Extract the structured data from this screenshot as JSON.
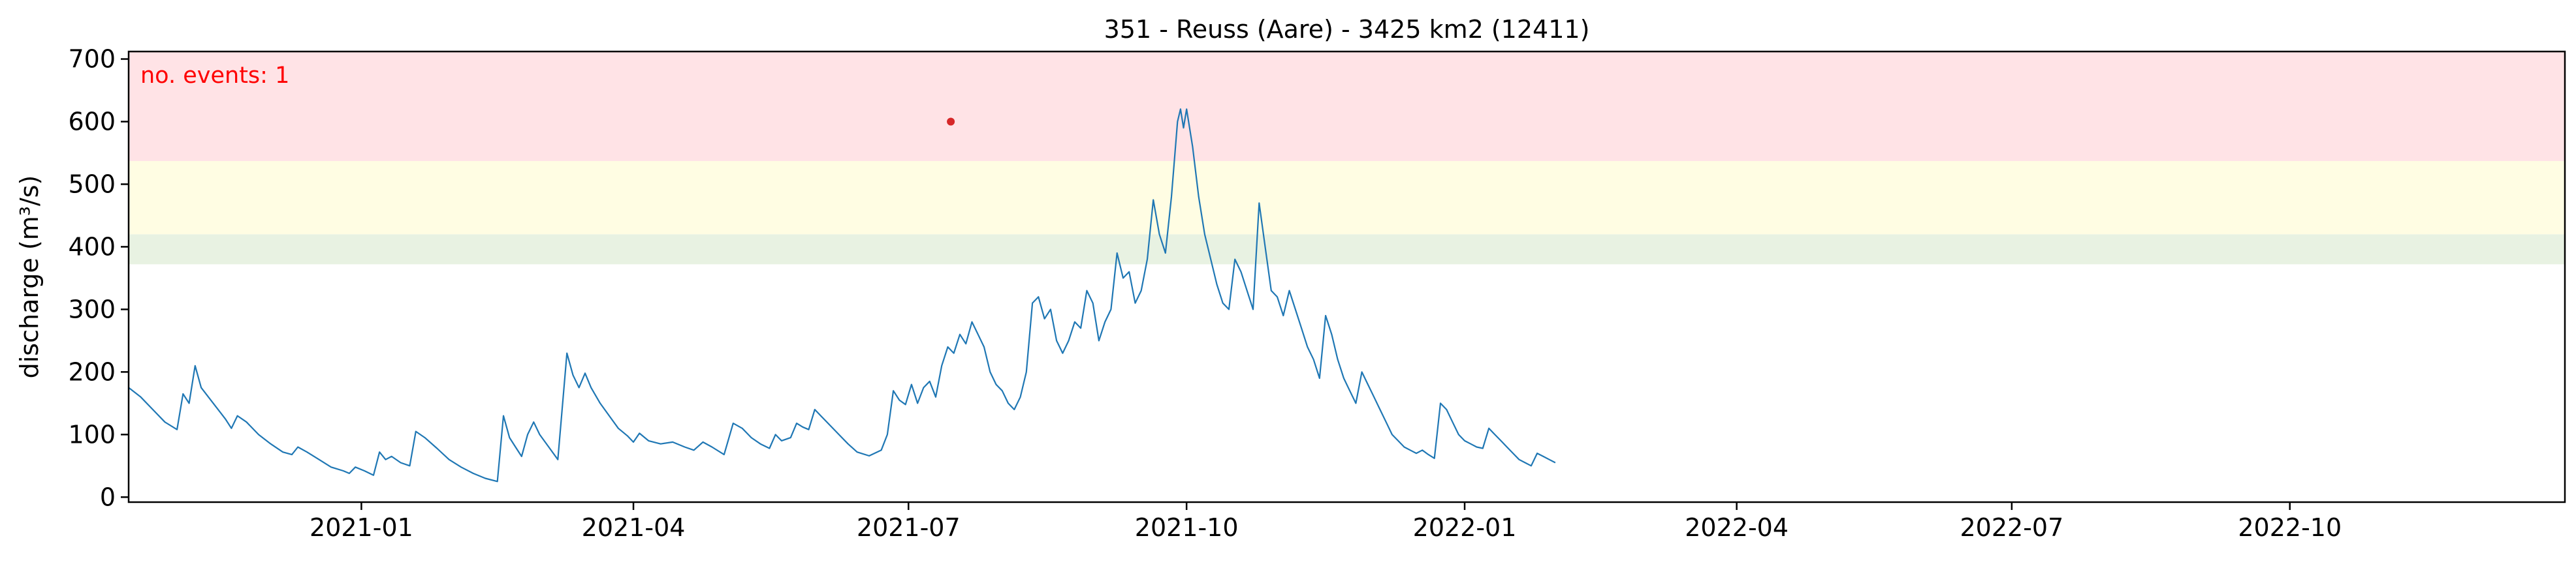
{
  "chart_data": {
    "type": "line",
    "title": "351 - Reuss (Aare) - 3425 km2 (12411)",
    "xlabel": "",
    "ylabel": "discharge (m³/s)",
    "x_range": [
      "2020-10-16",
      "2022-12-31"
    ],
    "ylim": [
      -8,
      712
    ],
    "y_ticks": [
      0,
      100,
      200,
      300,
      400,
      500,
      600,
      700
    ],
    "x_ticks": [
      {
        "date": "2021-01-01",
        "label": "2021-01"
      },
      {
        "date": "2021-04-01",
        "label": "2021-04"
      },
      {
        "date": "2021-07-01",
        "label": "2021-07"
      },
      {
        "date": "2021-10-01",
        "label": "2021-10"
      },
      {
        "date": "2022-01-01",
        "label": "2022-01"
      },
      {
        "date": "2022-04-01",
        "label": "2022-04"
      },
      {
        "date": "2022-07-01",
        "label": "2022-07"
      },
      {
        "date": "2022-10-01",
        "label": "2022-10"
      }
    ],
    "threshold_bands": [
      {
        "name": "green-band",
        "y0": 372,
        "y1": 420,
        "color": "#e8f2e2"
      },
      {
        "name": "yellow-band",
        "y0": 420,
        "y1": 537,
        "color": "#fffde3"
      },
      {
        "name": "red-band",
        "y0": 537,
        "y1": 712,
        "color": "#ffe3e6"
      }
    ],
    "annotation": {
      "text": "no. events: 1",
      "color": "#ff0000"
    },
    "events": [
      {
        "date": "2021-07-15",
        "value": 600,
        "color": "#d62728"
      }
    ],
    "line_color": "#1f77b4",
    "series": [
      {
        "name": "discharge",
        "points": [
          [
            "2020-10-16",
            175
          ],
          [
            "2020-10-20",
            160
          ],
          [
            "2020-10-24",
            140
          ],
          [
            "2020-10-28",
            120
          ],
          [
            "2020-11-01",
            108
          ],
          [
            "2020-11-03",
            165
          ],
          [
            "2020-11-05",
            150
          ],
          [
            "2020-11-07",
            210
          ],
          [
            "2020-11-09",
            175
          ],
          [
            "2020-11-13",
            150
          ],
          [
            "2020-11-17",
            125
          ],
          [
            "2020-11-19",
            110
          ],
          [
            "2020-11-21",
            130
          ],
          [
            "2020-11-24",
            120
          ],
          [
            "2020-11-28",
            100
          ],
          [
            "2020-12-02",
            85
          ],
          [
            "2020-12-06",
            72
          ],
          [
            "2020-12-09",
            68
          ],
          [
            "2020-12-11",
            80
          ],
          [
            "2020-12-14",
            72
          ],
          [
            "2020-12-18",
            60
          ],
          [
            "2020-12-22",
            48
          ],
          [
            "2020-12-26",
            42
          ],
          [
            "2020-12-28",
            38
          ],
          [
            "2020-12-30",
            48
          ],
          [
            "2021-01-02",
            42
          ],
          [
            "2021-01-05",
            35
          ],
          [
            "2021-01-07",
            72
          ],
          [
            "2021-01-09",
            60
          ],
          [
            "2021-01-11",
            65
          ],
          [
            "2021-01-14",
            55
          ],
          [
            "2021-01-17",
            50
          ],
          [
            "2021-01-19",
            105
          ],
          [
            "2021-01-22",
            95
          ],
          [
            "2021-01-26",
            78
          ],
          [
            "2021-01-30",
            60
          ],
          [
            "2021-02-03",
            48
          ],
          [
            "2021-02-07",
            38
          ],
          [
            "2021-02-11",
            30
          ],
          [
            "2021-02-15",
            25
          ],
          [
            "2021-02-17",
            130
          ],
          [
            "2021-02-19",
            95
          ],
          [
            "2021-02-21",
            80
          ],
          [
            "2021-02-23",
            65
          ],
          [
            "2021-02-25",
            100
          ],
          [
            "2021-02-27",
            120
          ],
          [
            "2021-03-01",
            100
          ],
          [
            "2021-03-04",
            80
          ],
          [
            "2021-03-07",
            60
          ],
          [
            "2021-03-10",
            230
          ],
          [
            "2021-03-12",
            195
          ],
          [
            "2021-03-14",
            175
          ],
          [
            "2021-03-16",
            198
          ],
          [
            "2021-03-18",
            175
          ],
          [
            "2021-03-21",
            150
          ],
          [
            "2021-03-24",
            130
          ],
          [
            "2021-03-27",
            110
          ],
          [
            "2021-03-30",
            98
          ],
          [
            "2021-04-01",
            88
          ],
          [
            "2021-04-03",
            102
          ],
          [
            "2021-04-06",
            90
          ],
          [
            "2021-04-10",
            85
          ],
          [
            "2021-04-14",
            88
          ],
          [
            "2021-04-18",
            80
          ],
          [
            "2021-04-21",
            75
          ],
          [
            "2021-04-24",
            88
          ],
          [
            "2021-04-27",
            80
          ],
          [
            "2021-05-01",
            68
          ],
          [
            "2021-05-04",
            118
          ],
          [
            "2021-05-07",
            110
          ],
          [
            "2021-05-10",
            95
          ],
          [
            "2021-05-13",
            85
          ],
          [
            "2021-05-16",
            78
          ],
          [
            "2021-05-18",
            100
          ],
          [
            "2021-05-20",
            90
          ],
          [
            "2021-05-23",
            95
          ],
          [
            "2021-05-25",
            118
          ],
          [
            "2021-05-27",
            112
          ],
          [
            "2021-05-29",
            108
          ],
          [
            "2021-05-31",
            140
          ],
          [
            "2021-06-02",
            130
          ],
          [
            "2021-06-05",
            115
          ],
          [
            "2021-06-08",
            100
          ],
          [
            "2021-06-11",
            85
          ],
          [
            "2021-06-14",
            72
          ],
          [
            "2021-06-18",
            66
          ],
          [
            "2021-06-22",
            75
          ],
          [
            "2021-06-24",
            100
          ],
          [
            "2021-06-26",
            170
          ],
          [
            "2021-06-28",
            155
          ],
          [
            "2021-06-30",
            148
          ],
          [
            "2021-07-02",
            180
          ],
          [
            "2021-07-04",
            150
          ],
          [
            "2021-07-06",
            175
          ],
          [
            "2021-07-08",
            185
          ],
          [
            "2021-07-10",
            160
          ],
          [
            "2021-07-12",
            210
          ],
          [
            "2021-07-14",
            240
          ],
          [
            "2021-07-16",
            230
          ],
          [
            "2021-07-18",
            260
          ],
          [
            "2021-07-20",
            245
          ],
          [
            "2021-07-22",
            280
          ],
          [
            "2021-07-24",
            260
          ],
          [
            "2021-07-26",
            240
          ],
          [
            "2021-07-28",
            200
          ],
          [
            "2021-07-30",
            180
          ],
          [
            "2021-08-01",
            170
          ],
          [
            "2021-08-03",
            150
          ],
          [
            "2021-08-05",
            140
          ],
          [
            "2021-08-07",
            160
          ],
          [
            "2021-08-09",
            200
          ],
          [
            "2021-08-11",
            310
          ],
          [
            "2021-08-13",
            320
          ],
          [
            "2021-08-15",
            285
          ],
          [
            "2021-08-17",
            300
          ],
          [
            "2021-08-19",
            250
          ],
          [
            "2021-08-21",
            230
          ],
          [
            "2021-08-23",
            250
          ],
          [
            "2021-08-25",
            280
          ],
          [
            "2021-08-27",
            270
          ],
          [
            "2021-08-29",
            330
          ],
          [
            "2021-08-31",
            310
          ],
          [
            "2021-09-02",
            250
          ],
          [
            "2021-09-04",
            280
          ],
          [
            "2021-09-06",
            300
          ],
          [
            "2021-09-08",
            390
          ],
          [
            "2021-09-10",
            350
          ],
          [
            "2021-09-12",
            360
          ],
          [
            "2021-09-14",
            310
          ],
          [
            "2021-09-16",
            330
          ],
          [
            "2021-09-18",
            380
          ],
          [
            "2021-09-20",
            475
          ],
          [
            "2021-09-22",
            420
          ],
          [
            "2021-09-24",
            390
          ],
          [
            "2021-09-26",
            480
          ],
          [
            "2021-09-28",
            600
          ],
          [
            "2021-09-29",
            620
          ],
          [
            "2021-09-30",
            590
          ],
          [
            "2021-10-01",
            620
          ],
          [
            "2021-10-03",
            560
          ],
          [
            "2021-10-05",
            480
          ],
          [
            "2021-10-07",
            420
          ],
          [
            "2021-10-09",
            380
          ],
          [
            "2021-10-11",
            340
          ],
          [
            "2021-10-13",
            310
          ],
          [
            "2021-10-15",
            300
          ],
          [
            "2021-10-17",
            380
          ],
          [
            "2021-10-19",
            360
          ],
          [
            "2021-10-21",
            330
          ],
          [
            "2021-10-23",
            300
          ],
          [
            "2021-10-25",
            470
          ],
          [
            "2021-10-27",
            400
          ],
          [
            "2021-10-29",
            330
          ],
          [
            "2021-10-31",
            320
          ],
          [
            "2021-11-02",
            290
          ],
          [
            "2021-11-04",
            330
          ],
          [
            "2021-11-06",
            300
          ],
          [
            "2021-11-08",
            270
          ],
          [
            "2021-11-10",
            240
          ],
          [
            "2021-11-12",
            220
          ],
          [
            "2021-11-14",
            190
          ],
          [
            "2021-11-16",
            290
          ],
          [
            "2021-11-18",
            260
          ],
          [
            "2021-11-20",
            220
          ],
          [
            "2021-11-22",
            190
          ],
          [
            "2021-11-24",
            170
          ],
          [
            "2021-11-26",
            150
          ],
          [
            "2021-11-28",
            200
          ],
          [
            "2021-11-30",
            180
          ],
          [
            "2021-12-02",
            160
          ],
          [
            "2021-12-04",
            140
          ],
          [
            "2021-12-06",
            120
          ],
          [
            "2021-12-08",
            100
          ],
          [
            "2021-12-10",
            90
          ],
          [
            "2021-12-12",
            80
          ],
          [
            "2021-12-14",
            75
          ],
          [
            "2021-12-16",
            70
          ],
          [
            "2021-12-18",
            75
          ],
          [
            "2021-12-20",
            68
          ],
          [
            "2021-12-22",
            62
          ],
          [
            "2021-12-24",
            150
          ],
          [
            "2021-12-26",
            140
          ],
          [
            "2021-12-28",
            120
          ],
          [
            "2021-12-30",
            100
          ],
          [
            "2022-01-01",
            90
          ],
          [
            "2022-01-03",
            85
          ],
          [
            "2022-01-05",
            80
          ],
          [
            "2022-01-07",
            78
          ],
          [
            "2022-01-09",
            110
          ],
          [
            "2022-01-11",
            100
          ],
          [
            "2022-01-13",
            90
          ],
          [
            "2022-01-15",
            80
          ],
          [
            "2022-01-17",
            70
          ],
          [
            "2022-01-19",
            60
          ],
          [
            "2022-01-21",
            55
          ],
          [
            "2022-01-23",
            50
          ],
          [
            "2022-01-25",
            70
          ],
          [
            "2022-01-27",
            65
          ],
          [
            "2022-01-29",
            60
          ],
          [
            "2022-01-31",
            55
          ]
        ]
      }
    ]
  }
}
